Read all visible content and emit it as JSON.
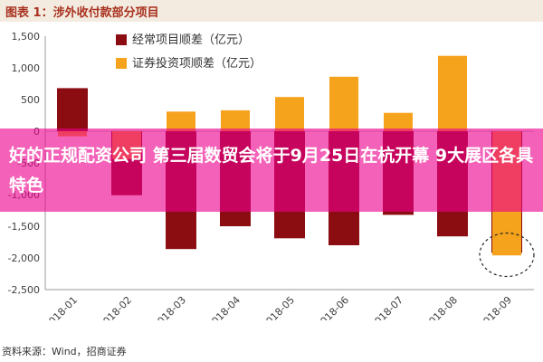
{
  "header": {
    "title": "图表 1：涉外收付款部分项目"
  },
  "source": "资料来源：Wind，招商证券",
  "overlay": {
    "headline": "好的正规配资公司   第三届数贸会将于9月25日在杭开幕 9大展区各具特色"
  },
  "colors": {
    "current_account": "#8b0d12",
    "securities": "#f5a21c",
    "overlay": "#ec008c"
  },
  "chart_data": {
    "type": "bar",
    "categories": [
      "2018-01",
      "2018-02",
      "2018-03",
      "2018-04",
      "2018-05",
      "2018-06",
      "2018-07",
      "2018-08",
      "2018-09"
    ],
    "series": [
      {
        "name": "经常项目顺差（亿元）",
        "values": [
          680,
          -1010,
          -1860,
          -1500,
          -1690,
          -1800,
          -1320,
          -1660,
          -1920
        ]
      },
      {
        "name": "证券投资项顺差（亿元）",
        "values": [
          -80,
          -440,
          310,
          330,
          540,
          860,
          290,
          1190,
          -1960
        ]
      }
    ],
    "yticks": [
      "1,500",
      "1,000",
      "500",
      "0",
      "-500",
      "-1,000",
      "-1,500",
      "-2,000",
      "-2,500"
    ],
    "ytick_values": [
      1500,
      1000,
      500,
      0,
      -500,
      -1000,
      -1500,
      -2000,
      -2500
    ],
    "ylim": [
      -2500,
      1500
    ],
    "legend_position": "top-center",
    "annotation": "dashed-circle-around-2018-09"
  }
}
